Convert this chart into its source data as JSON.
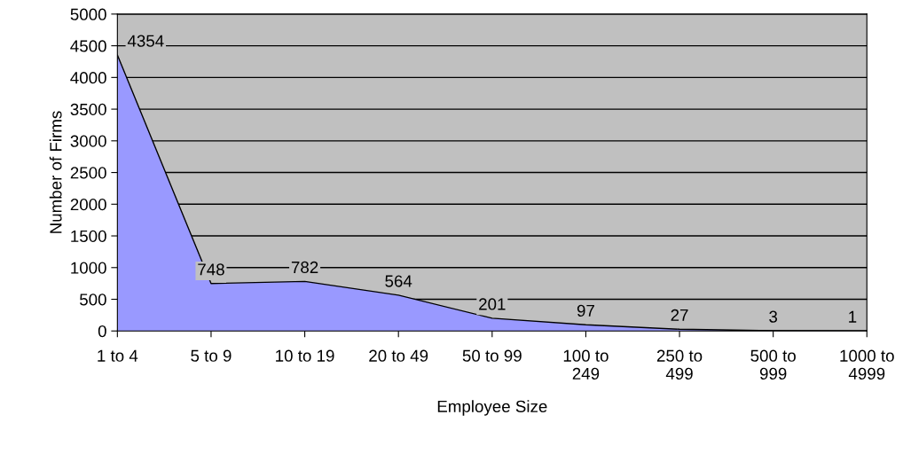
{
  "chart_data": {
    "type": "area",
    "xlabel": "Employee Size",
    "ylabel": "Number of Firms",
    "categories": [
      "1 to 4",
      "5 to 9",
      "10 to 19",
      "20 to 49",
      "50 to 99",
      "100 to 249",
      "250 to 499",
      "500 to 999",
      "1000 to 4999"
    ],
    "values": [
      4354,
      748,
      782,
      564,
      201,
      97,
      27,
      3,
      1
    ],
    "color": "#9999ff",
    "ylim": [
      0,
      5000
    ],
    "yticks": [
      0,
      500,
      1000,
      1500,
      2000,
      2500,
      3000,
      3500,
      4000,
      4500,
      5000
    ],
    "grid": "y",
    "data_labels": true
  }
}
